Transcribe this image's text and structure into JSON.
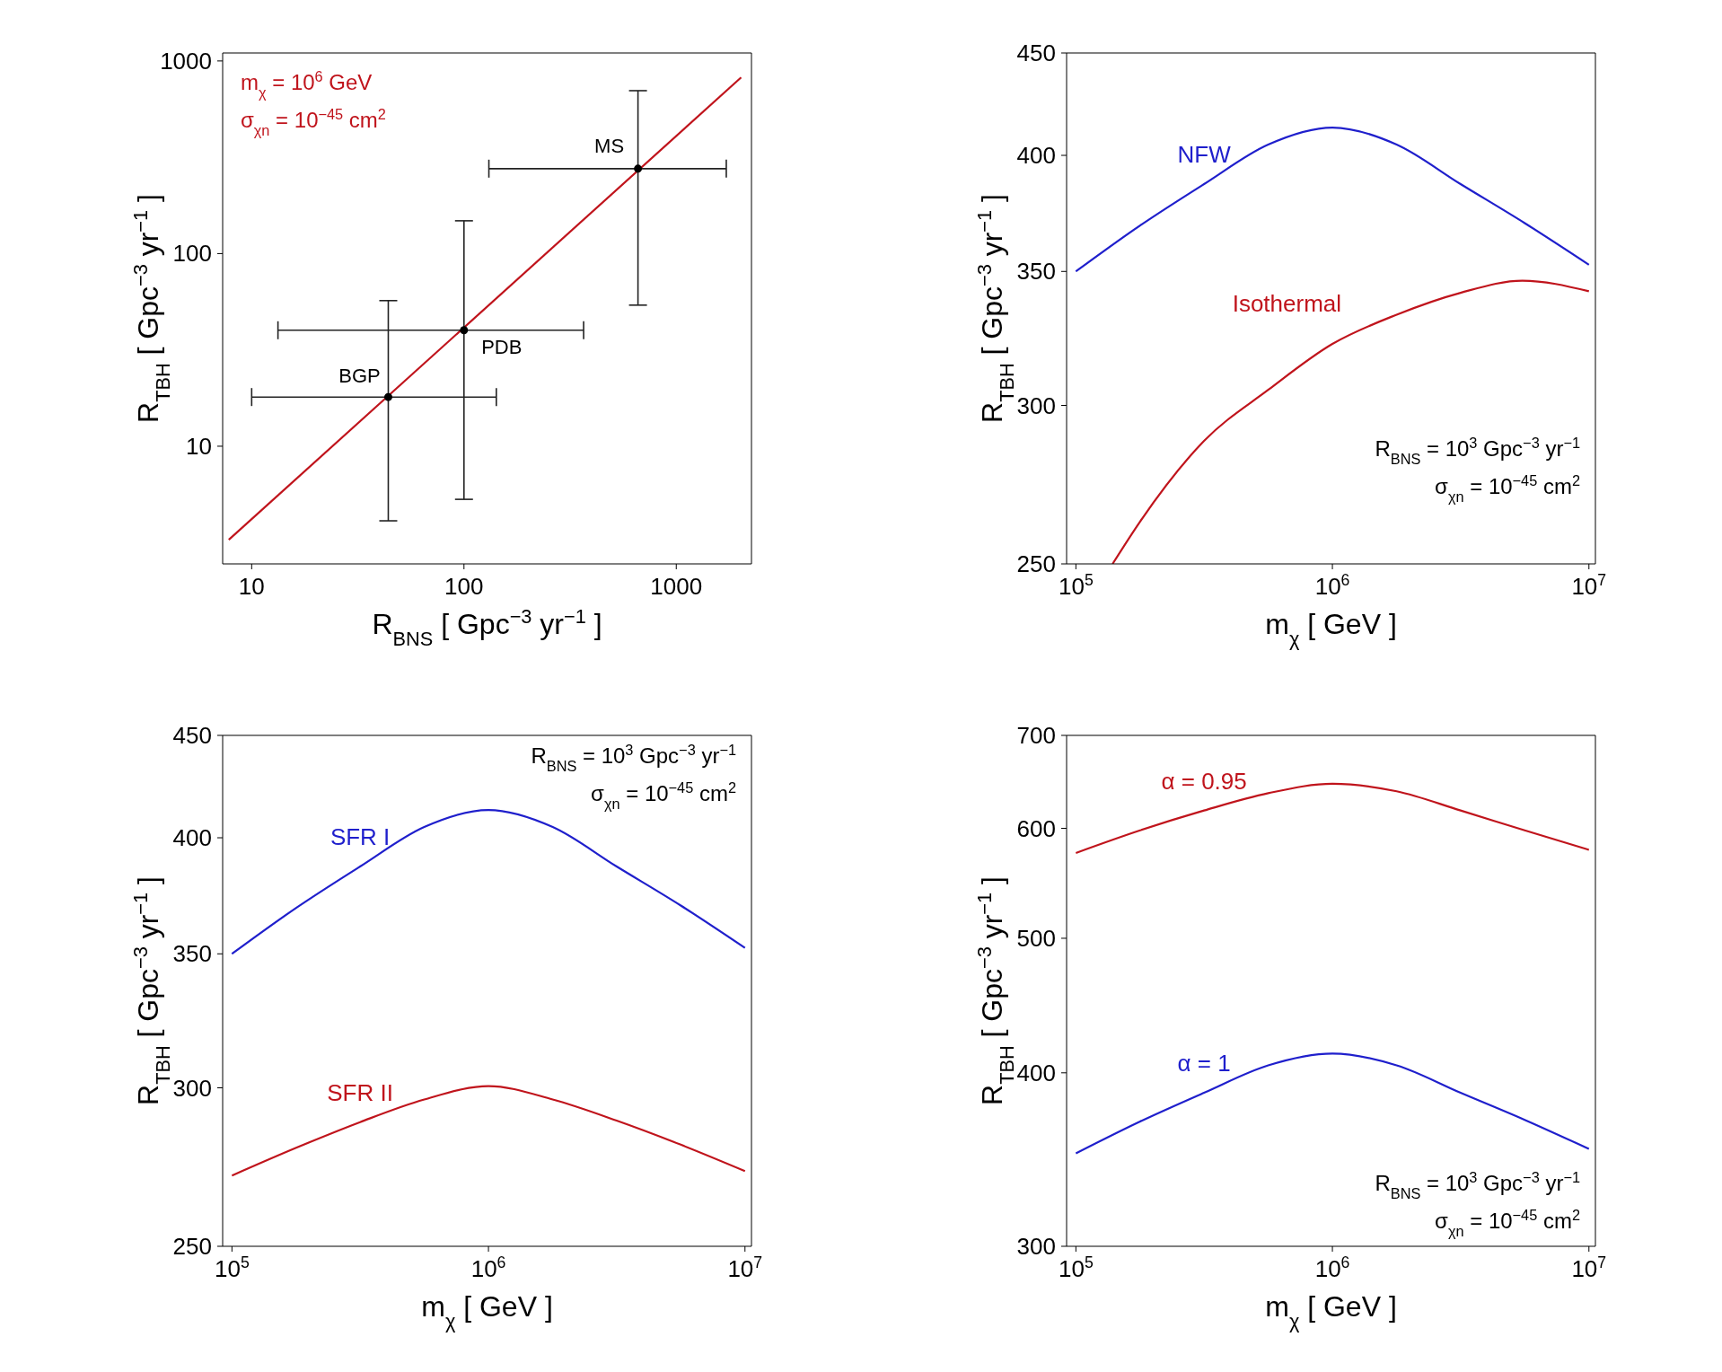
{
  "chart_data": [
    {
      "type": "line",
      "xlabel": "R$_{BNS}$ [ Gpc$^{−3}$ yr$^{−1}$ ]",
      "ylabel": "R$_{TBH}$ [ Gpc$^{−3}$ yr$^{−1}$ ]",
      "log": "xy",
      "xlim": [
        7.3,
        2260
      ],
      "ylim": [
        2.45,
        1100
      ],
      "xticks": [
        10,
        100,
        1000
      ],
      "yticks": [
        10,
        100,
        1000
      ],
      "legend": false,
      "series": [
        {
          "type": "line",
          "color": "#c0141c",
          "x": [
            7.8,
            2020
          ],
          "values": [
            3.27,
            821
          ]
        },
        {
          "type": "scatter",
          "color": "#000000",
          "marker": "circle",
          "x": [
            44,
            100,
            660
          ],
          "values": [
            18,
            40,
            276
          ],
          "xerrors": [
            [
              10,
              142
            ],
            [
              13.3,
              366
            ],
            [
              131,
              1720
            ]
          ],
          "errors": [
            [
              4.1,
              57
            ],
            [
              5.3,
              148
            ],
            [
              54,
              701
            ]
          ]
        }
      ],
      "annotations": [
        "m$_{χ}$ = 10$^{6}$ GeV",
        "σ$_{χn}$ = 10$^{−45}$ cm$^{2}$",
        {
          "text": "BGP",
          "x": 44,
          "y": 18
        },
        {
          "text": "PDB",
          "x": 100,
          "y": 40
        },
        {
          "text": "MS",
          "x": 660,
          "y": 276
        }
      ]
    },
    {
      "type": "line",
      "xlabel": "m$_{χ}$ [ GeV ]",
      "ylabel": "R$_{TBH}$ [ Gpc$^{−3}$ yr$^{−1}$ ]",
      "log": "xy",
      "xlim": [
        92000,
        10600000
      ],
      "ylim": [
        250,
        450
      ],
      "xticks": [
        {
          "value": 100000,
          "label": "10$^{5}$"
        },
        {
          "value": 1000000,
          "label": "10$^{6}$"
        },
        {
          "value": 10000000,
          "label": "10$^{7}$"
        }
      ],
      "yticks": [
        250,
        300,
        350,
        400,
        450
      ],
      "legend": false,
      "x": [
        100000,
        178000,
        316000,
        562000,
        1000000,
        1780000,
        3160000,
        5620000,
        10000000
      ],
      "series": [
        {
          "name": "NFW",
          "color": "#1f1fcc",
          "values": [
            350,
            369,
            387,
            405,
            413,
            405,
            387,
            370,
            352.7
          ]
        },
        {
          "name": "Isothermal",
          "color": "#c0141c",
          "x": [
            139000,
            178000,
            316000,
            562000,
            1000000,
            1780000,
            3160000,
            5500000,
            10000000
          ],
          "values": [
            250,
            262.5,
            288,
            305.4,
            322,
            333,
            341.5,
            346.3,
            342.1
          ]
        }
      ],
      "annotations": [
        "R$_{BNS}$ = 10$^{3}$ Gpc$^{−3}$ yr$^{−1}$",
        "σ$_{χn}$ = 10$^{−45}$ cm$^{2}$"
      ]
    },
    {
      "type": "line",
      "xlabel": "m$_{χ}$ [ GeV ]",
      "ylabel": "R$_{TBH}$ [ Gpc$^{−3}$ yr$^{−1}$ ]",
      "log": "xy",
      "xlim": [
        92000,
        10600000
      ],
      "ylim": [
        250,
        450
      ],
      "xticks": [
        {
          "value": 100000,
          "label": "10$^{5}$"
        },
        {
          "value": 1000000,
          "label": "10$^{6}$"
        },
        {
          "value": 10000000,
          "label": "10$^{7}$"
        }
      ],
      "yticks": [
        250,
        300,
        350,
        400,
        450
      ],
      "legend": false,
      "x": [
        100000,
        178000,
        316000,
        562000,
        1000000,
        1780000,
        3160000,
        5620000,
        10000000
      ],
      "series": [
        {
          "name": "SFR I",
          "color": "#1f1fcc",
          "values": [
            350,
            369,
            387,
            405,
            413,
            405,
            387,
            370,
            352.4
          ]
        },
        {
          "name": "SFR II",
          "color": "#c0141c",
          "values": [
            271.2,
            280,
            288.4,
            296,
            300.6,
            296,
            288.9,
            281,
            272.6
          ]
        }
      ],
      "annotations": [
        "R$_{BNS}$ = 10$^{3}$ Gpc$^{−3}$ yr$^{−1}$",
        "σ$_{χn}$ = 10$^{−45}$ cm$^{2}$"
      ]
    },
    {
      "type": "line",
      "xlabel": "m$_{χ}$ [ GeV ]",
      "ylabel": "R$_{TBH}$ [ Gpc$^{−3}$ yr$^{−1}$ ]",
      "log": "xy",
      "xlim": [
        92000,
        10600000
      ],
      "ylim": [
        300,
        700
      ],
      "xticks": [
        {
          "value": 100000,
          "label": "10$^{5}$"
        },
        {
          "value": 1000000,
          "label": "10$^{6}$"
        },
        {
          "value": 10000000,
          "label": "10$^{7}$"
        }
      ],
      "yticks": [
        300,
        400,
        500,
        600,
        700
      ],
      "legend": false,
      "x": [
        100000,
        178000,
        316000,
        562000,
        1000000,
        1780000,
        3160000,
        5620000,
        10000000
      ],
      "series": [
        {
          "name": "α = 0.95",
          "color": "#c0141c",
          "values": [
            576,
            598,
            618,
            636,
            646,
            638,
            618,
            598,
            579
          ]
        },
        {
          "name": "α = 1",
          "color": "#1f1fcc",
          "values": [
            350,
            369,
            387,
            405,
            413,
            405,
            387,
            370,
            352.6
          ]
        }
      ],
      "annotations": [
        "R$_{BNS}$ = 10$^{3}$ Gpc$^{−3}$ yr$^{−1}$",
        "σ$_{χn}$ = 10$^{−45}$ cm$^{2}$"
      ]
    }
  ]
}
